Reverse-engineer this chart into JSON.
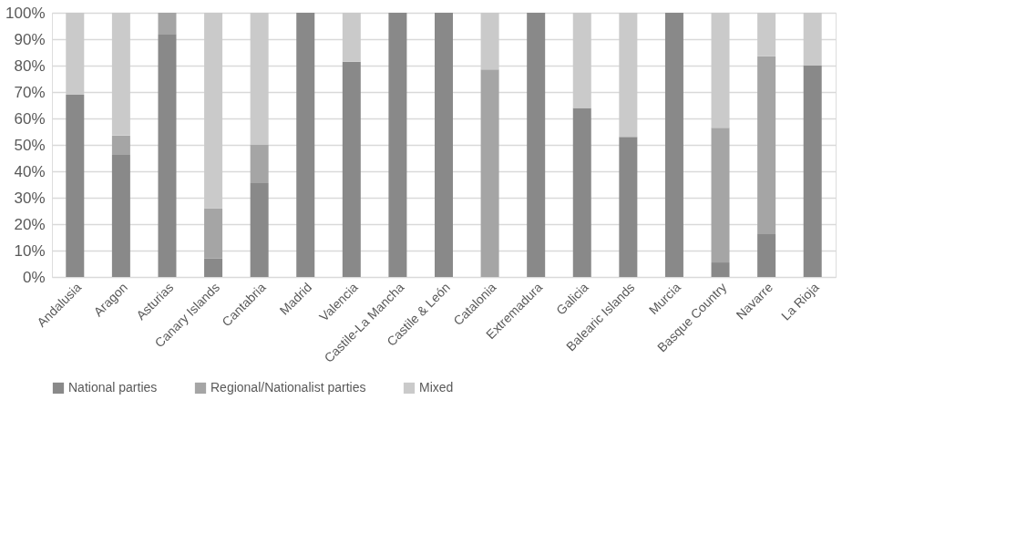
{
  "chart_data": {
    "type": "bar",
    "stacked": true,
    "categories": [
      "Andalusia",
      "Aragon",
      "Asturias",
      "Canary Islands",
      "Cantabria",
      "Madrid",
      "Valencia",
      "Castile-La Mancha",
      "Castile & León",
      "Catalonia",
      "Extremadura",
      "Galicia",
      "Balearic Islands",
      "Murcia",
      "Basque Country",
      "Navarre",
      "La Rioja"
    ],
    "series": [
      {
        "name": "National parties",
        "color": "#898989",
        "values": [
          69,
          46.5,
          92,
          7,
          35.5,
          100,
          81.5,
          100,
          100,
          0,
          100,
          64,
          53,
          100,
          5.5,
          16.5,
          80
        ]
      },
      {
        "name": "Regional/Nationalist parties",
        "color": "#a5a5a5",
        "values": [
          0,
          7,
          8,
          19,
          14.5,
          0,
          0,
          0,
          0,
          78.5,
          0,
          0,
          0,
          0,
          51,
          67,
          0
        ]
      },
      {
        "name": "Mixed",
        "color": "#cacaca",
        "values": [
          31,
          46.5,
          0,
          74,
          50,
          0,
          18.5,
          0,
          0,
          21.5,
          0,
          36,
          47,
          0,
          43.5,
          16.5,
          20
        ]
      }
    ],
    "ylim": [
      0,
      100
    ],
    "yticks": [
      {
        "value": 0,
        "label": "0%"
      },
      {
        "value": 10,
        "label": "10%"
      },
      {
        "value": 20,
        "label": "20%"
      },
      {
        "value": 30,
        "label": "30%"
      },
      {
        "value": 40,
        "label": "40%"
      },
      {
        "value": 50,
        "label": "50%"
      },
      {
        "value": 60,
        "label": "60%"
      },
      {
        "value": 70,
        "label": "70%"
      },
      {
        "value": 80,
        "label": "80%"
      },
      {
        "value": 90,
        "label": "90%"
      },
      {
        "value": 100,
        "label": "100%"
      }
    ],
    "grid": "y",
    "legend": "bottom"
  }
}
